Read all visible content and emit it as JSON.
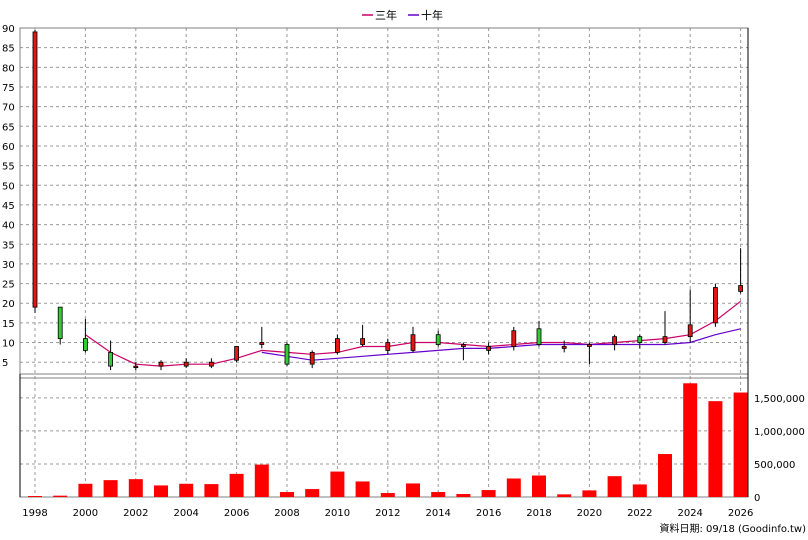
{
  "chart_data": {
    "type": "candlestick",
    "legend": {
      "placement": "top-center",
      "items": [
        {
          "label": "三年",
          "color": "#cc0066"
        },
        {
          "label": "十年",
          "color": "#6600cc"
        }
      ]
    },
    "source_label": "資料日期: 09/18 (Goodinfo.tw)",
    "x_ticks": [
      "1998",
      "2000",
      "2002",
      "2004",
      "2006",
      "2008",
      "2010",
      "2012",
      "2014",
      "2016",
      "2018",
      "2020",
      "2022",
      "2024",
      "2026"
    ],
    "price_axis": {
      "ylim": [
        2,
        90
      ],
      "ticks": [
        5,
        10,
        15,
        20,
        25,
        30,
        35,
        40,
        45,
        50,
        55,
        60,
        65,
        70,
        75,
        80,
        85,
        90
      ]
    },
    "volume_axis": {
      "ylim": [
        0,
        1800000
      ],
      "ticks": [
        0,
        500000,
        1000000,
        1500000
      ],
      "tick_labels": [
        "0",
        "500,000",
        "1,000,000",
        "1,500,000"
      ]
    },
    "colors": {
      "up": "#e31515",
      "down": "#33cc33",
      "volume": "#ff0000"
    },
    "candles": [
      {
        "year": 1998,
        "open": 19,
        "high": 89.5,
        "low": 17.5,
        "close": 89
      },
      {
        "year": 1999,
        "open": 19,
        "high": 19,
        "low": 9.5,
        "close": 11
      },
      {
        "year": 2000,
        "open": 11,
        "high": 16,
        "low": 7.5,
        "close": 8
      },
      {
        "year": 2001,
        "open": 7.5,
        "high": 10.5,
        "low": 3,
        "close": 4
      },
      {
        "year": 2002,
        "open": 4,
        "high": 5,
        "low": 3,
        "close": 4
      },
      {
        "year": 2003,
        "open": 4,
        "high": 5.5,
        "low": 3,
        "close": 5
      },
      {
        "year": 2004,
        "open": 4,
        "high": 6,
        "low": 3.5,
        "close": 5
      },
      {
        "year": 2005,
        "open": 4,
        "high": 6,
        "low": 3.5,
        "close": 5
      },
      {
        "year": 2006,
        "open": 5.5,
        "high": 9,
        "low": 5,
        "close": 9
      },
      {
        "year": 2007,
        "open": 9.5,
        "high": 14,
        "low": 8.5,
        "close": 10
      },
      {
        "year": 2008,
        "open": 9.5,
        "high": 10,
        "low": 4,
        "close": 4.5
      },
      {
        "year": 2009,
        "open": 4.5,
        "high": 8,
        "low": 3.5,
        "close": 7.5
      },
      {
        "year": 2010,
        "open": 7.5,
        "high": 12,
        "low": 7,
        "close": 11
      },
      {
        "year": 2011,
        "open": 9.5,
        "high": 14.5,
        "low": 9,
        "close": 11
      },
      {
        "year": 2012,
        "open": 8,
        "high": 11,
        "low": 7,
        "close": 10
      },
      {
        "year": 2013,
        "open": 8,
        "high": 14,
        "low": 7.5,
        "close": 12
      },
      {
        "year": 2014,
        "open": 12,
        "high": 13,
        "low": 9,
        "close": 9.5
      },
      {
        "year": 2015,
        "open": 9,
        "high": 10,
        "low": 5.5,
        "close": 9.5
      },
      {
        "year": 2016,
        "open": 8,
        "high": 10,
        "low": 7,
        "close": 9
      },
      {
        "year": 2017,
        "open": 9,
        "high": 14,
        "low": 8,
        "close": 13
      },
      {
        "year": 2018,
        "open": 13.5,
        "high": 15.5,
        "low": 9,
        "close": 9.5
      },
      {
        "year": 2019,
        "open": 8.5,
        "high": 10.5,
        "low": 7.5,
        "close": 9
      },
      {
        "year": 2020,
        "open": 9,
        "high": 10,
        "low": 4.5,
        "close": 9.5
      },
      {
        "year": 2021,
        "open": 9.5,
        "high": 12,
        "low": 8,
        "close": 11.5
      },
      {
        "year": 2022,
        "open": 11.5,
        "high": 12,
        "low": 8.5,
        "close": 10
      },
      {
        "year": 2023,
        "open": 10,
        "high": 18,
        "low": 9.5,
        "close": 11.5
      },
      {
        "year": 2024,
        "open": 11.5,
        "high": 23.5,
        "low": 10,
        "close": 14.5
      },
      {
        "year": 2025,
        "open": 15,
        "high": 25,
        "low": 14,
        "close": 24
      },
      {
        "year": 2026,
        "open": 23,
        "high": 34,
        "low": 22.5,
        "close": 24.5
      }
    ],
    "volume": [
      {
        "year": 1998,
        "value": 15000
      },
      {
        "year": 1999,
        "value": 20000
      },
      {
        "year": 2000,
        "value": 200000
      },
      {
        "year": 2001,
        "value": 255000
      },
      {
        "year": 2002,
        "value": 270000
      },
      {
        "year": 2003,
        "value": 175000
      },
      {
        "year": 2004,
        "value": 200000
      },
      {
        "year": 2005,
        "value": 195000
      },
      {
        "year": 2006,
        "value": 350000
      },
      {
        "year": 2007,
        "value": 490000
      },
      {
        "year": 2008,
        "value": 75000
      },
      {
        "year": 2009,
        "value": 120000
      },
      {
        "year": 2010,
        "value": 385000
      },
      {
        "year": 2011,
        "value": 235000
      },
      {
        "year": 2012,
        "value": 60000
      },
      {
        "year": 2013,
        "value": 205000
      },
      {
        "year": 2014,
        "value": 75000
      },
      {
        "year": 2015,
        "value": 45000
      },
      {
        "year": 2016,
        "value": 105000
      },
      {
        "year": 2017,
        "value": 280000
      },
      {
        "year": 2018,
        "value": 325000
      },
      {
        "year": 2019,
        "value": 40000
      },
      {
        "year": 2020,
        "value": 100000
      },
      {
        "year": 2021,
        "value": 315000
      },
      {
        "year": 2022,
        "value": 190000
      },
      {
        "year": 2023,
        "value": 650000
      },
      {
        "year": 2024,
        "value": 1720000
      },
      {
        "year": 2025,
        "value": 1450000
      },
      {
        "year": 2026,
        "value": 1580000
      }
    ],
    "series": [
      {
        "name": "三年",
        "color": "#cc0066",
        "points": [
          {
            "year": 2000,
            "value": 12
          },
          {
            "year": 2001,
            "value": 7.5
          },
          {
            "year": 2002,
            "value": 4.5
          },
          {
            "year": 2003,
            "value": 4
          },
          {
            "year": 2004,
            "value": 4.5
          },
          {
            "year": 2005,
            "value": 4.5
          },
          {
            "year": 2006,
            "value": 6
          },
          {
            "year": 2007,
            "value": 8
          },
          {
            "year": 2008,
            "value": 7.5
          },
          {
            "year": 2009,
            "value": 7
          },
          {
            "year": 2010,
            "value": 7.5
          },
          {
            "year": 2011,
            "value": 9
          },
          {
            "year": 2012,
            "value": 9
          },
          {
            "year": 2013,
            "value": 10
          },
          {
            "year": 2014,
            "value": 10
          },
          {
            "year": 2015,
            "value": 9.5
          },
          {
            "year": 2016,
            "value": 9
          },
          {
            "year": 2017,
            "value": 9.5
          },
          {
            "year": 2018,
            "value": 10
          },
          {
            "year": 2019,
            "value": 10
          },
          {
            "year": 2020,
            "value": 9.5
          },
          {
            "year": 2021,
            "value": 10
          },
          {
            "year": 2022,
            "value": 10.5
          },
          {
            "year": 2023,
            "value": 11
          },
          {
            "year": 2024,
            "value": 12
          },
          {
            "year": 2025,
            "value": 15.5
          },
          {
            "year": 2026,
            "value": 20.5
          }
        ]
      },
      {
        "name": "十年",
        "color": "#6600cc",
        "points": [
          {
            "year": 2007,
            "value": 7.5
          },
          {
            "year": 2008,
            "value": 6.5
          },
          {
            "year": 2009,
            "value": 5.5
          },
          {
            "year": 2010,
            "value": 6
          },
          {
            "year": 2011,
            "value": 6.5
          },
          {
            "year": 2012,
            "value": 7
          },
          {
            "year": 2013,
            "value": 7.5
          },
          {
            "year": 2014,
            "value": 8
          },
          {
            "year": 2015,
            "value": 8.5
          },
          {
            "year": 2016,
            "value": 8.5
          },
          {
            "year": 2017,
            "value": 9
          },
          {
            "year": 2018,
            "value": 9.5
          },
          {
            "year": 2019,
            "value": 9.5
          },
          {
            "year": 2020,
            "value": 9.5
          },
          {
            "year": 2021,
            "value": 9.5
          },
          {
            "year": 2022,
            "value": 9.5
          },
          {
            "year": 2023,
            "value": 9.5
          },
          {
            "year": 2024,
            "value": 10
          },
          {
            "year": 2025,
            "value": 12
          },
          {
            "year": 2026,
            "value": 13.5
          }
        ]
      }
    ]
  }
}
